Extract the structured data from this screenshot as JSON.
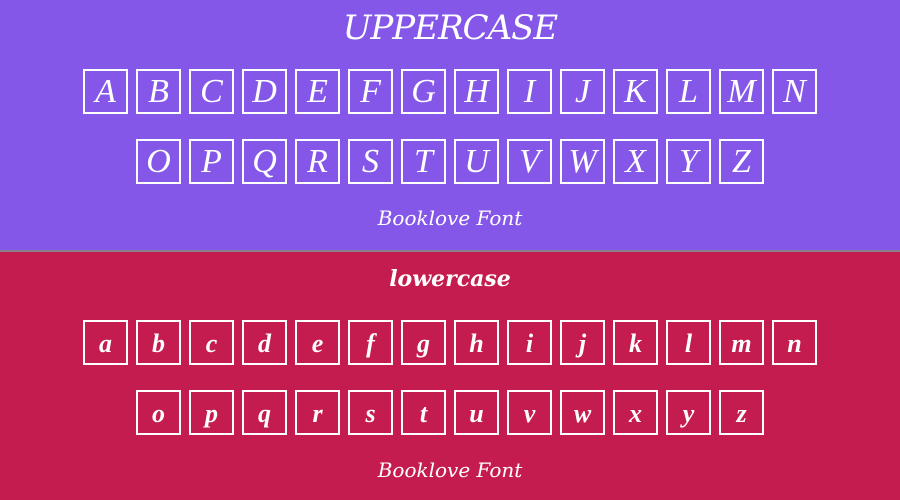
{
  "uppercase": {
    "title": "UPPERCASE",
    "row1": [
      "A",
      "B",
      "C",
      "D",
      "E",
      "F",
      "G",
      "H",
      "I",
      "J",
      "K",
      "L",
      "M",
      "N"
    ],
    "row2": [
      "O",
      "P",
      "Q",
      "R",
      "S",
      "T",
      "U",
      "V",
      "W",
      "X",
      "Y",
      "Z"
    ],
    "footer": "Booklove Font"
  },
  "lowercase": {
    "title": "lowercase",
    "row1": [
      "a",
      "b",
      "c",
      "d",
      "e",
      "f",
      "g",
      "h",
      "i",
      "j",
      "k",
      "l",
      "m",
      "n"
    ],
    "row2": [
      "o",
      "p",
      "q",
      "r",
      "s",
      "t",
      "u",
      "v",
      "w",
      "x",
      "y",
      "z"
    ],
    "footer": "Booklove Font"
  },
  "colors": {
    "top": "#8457E8",
    "bottom": "#C41C4E"
  }
}
